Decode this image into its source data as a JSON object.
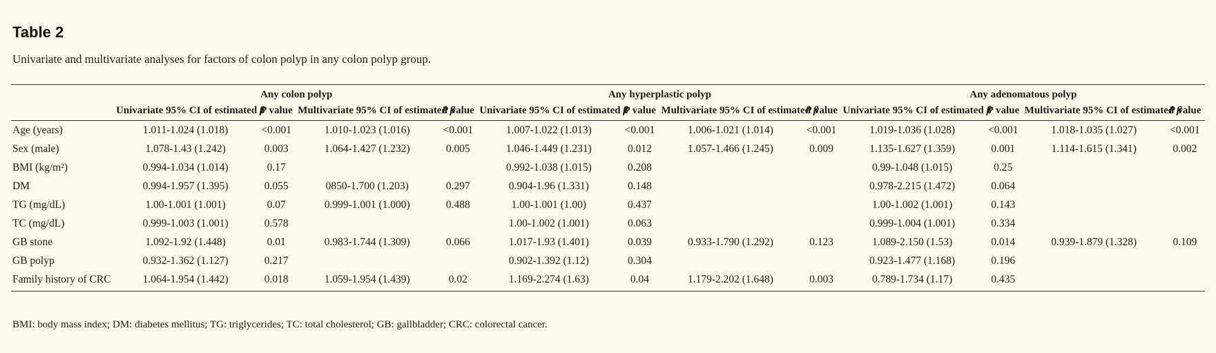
{
  "page": {
    "background_color": "#fcfaea",
    "title": "Table 2",
    "caption": "Univariate and multivariate analyses for factors of colon polyp in any colon polyp group.",
    "footnote": "BMI: body mass index; DM: diabetes mellitus; TG: triglycerides; TC: total cholesterol; GB: gallbladder; CRC: colorectal cancer."
  },
  "table": {
    "groups": [
      {
        "label": "Any colon polyp"
      },
      {
        "label": "Any hyperplastic polyp"
      },
      {
        "label": "Any adenomatous polyp"
      }
    ],
    "subheaders": {
      "univariate_prefix": "Univariate 95% CI of estimated",
      "multivariate_prefix": "Multivariate 95% CI of estimated",
      "beta": "β",
      "p_italic": "P",
      "p_rest": "value"
    },
    "rows": [
      {
        "label": "Age (years)",
        "cells": [
          "1.011-1.024 (1.018)",
          "<0.001",
          "1.010-1.023 (1.016)",
          "<0.001",
          "1.007-1.022 (1.013)",
          "<0.001",
          "1.006-1.021 (1.014)",
          "<0.001",
          "1.019-1.036 (1.028)",
          "<0.001",
          "1.018-1.035 (1.027)",
          "<0.001"
        ]
      },
      {
        "label": "Sex (male)",
        "cells": [
          "1.078-1.43 (1.242)",
          "0.003",
          "1.064-1.427 (1.232)",
          "0.005",
          "1.046-1.449 (1.231)",
          "0.012",
          "1.057-1.466 (1.245)",
          "0.009",
          "1.135-1.627 (1.359)",
          "0.001",
          "1.114-1.615 (1.341)",
          "0.002"
        ]
      },
      {
        "label": "BMI (kg/m²)",
        "cells": [
          "0.994-1.034 (1.014)",
          "0.17",
          "",
          "",
          "0.992-1.038 (1.015)",
          "0.208",
          "",
          "",
          "0.99-1.048 (1.015)",
          "0.25",
          "",
          ""
        ]
      },
      {
        "label": "DM",
        "cells": [
          "0.994-1.957 (1.395)",
          "0.055",
          "0850-1.700 (1.203)",
          "0.297",
          "0.904-1.96 (1.331)",
          "0.148",
          "",
          "",
          "0.978-2.215 (1.472)",
          "0.064",
          "",
          ""
        ]
      },
      {
        "label": "TG (mg/dL)",
        "cells": [
          "1.00-1.001 (1.001)",
          "0.07",
          "0.999-1.001 (1.000)",
          "0.488",
          "1.00-1.001 (1.00)",
          "0.437",
          "",
          "",
          "1.00-1.002 (1.001)",
          "0.143",
          "",
          ""
        ]
      },
      {
        "label": "TC (mg/dL)",
        "cells": [
          "0.999-1.003 (1.001)",
          "0.578",
          "",
          "",
          "1.00-1.002 (1.001)",
          "0.063",
          "",
          "",
          "0.999-1.004 (1.001)",
          "0.334",
          "",
          ""
        ]
      },
      {
        "label": "GB stone",
        "cells": [
          "1.092-1.92 (1.448)",
          "0.01",
          "0.983-1.744 (1.309)",
          "0.066",
          "1.017-1.93 (1.401)",
          "0.039",
          "0.933-1.790 (1.292)",
          "0.123",
          "1.089-2.150 (1.53)",
          "0.014",
          "0.939-1.879 (1.328)",
          "0.109"
        ]
      },
      {
        "label": "GB polyp",
        "cells": [
          "0.932-1.362 (1.127)",
          "0.217",
          "",
          "",
          "0.902-1.392 (1.12)",
          "0.304",
          "",
          "",
          "0.923-1.477 (1.168)",
          "0.196",
          "",
          ""
        ]
      },
      {
        "label": "Family history of CRC",
        "cells": [
          "1.064-1.954 (1.442)",
          "0.018",
          "1.059-1.954 (1.439)",
          "0.02",
          "1.169-2.274 (1.63)",
          "0.04",
          "1.179-2.202 (1.648)",
          "0.003",
          "0.789-1.734 (1.17)",
          "0.435",
          "",
          ""
        ]
      }
    ]
  }
}
